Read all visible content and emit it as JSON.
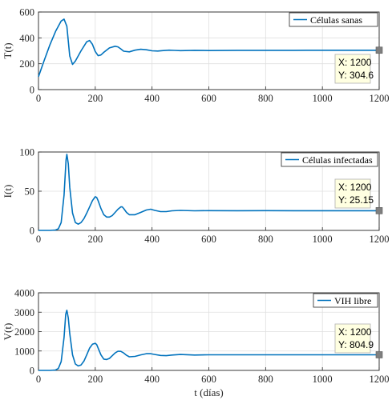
{
  "colors": {
    "line": "#0072BD",
    "grid": "#dfdfdf",
    "axis": "#262626",
    "tip_bg": "#ffffe1",
    "tip_border": "#b9b9b9",
    "marker": "#7f7f7f"
  },
  "chart_data": [
    {
      "type": "line",
      "ylabel": "T(t)",
      "xlabel": "",
      "xlim": [
        0,
        1200
      ],
      "ylim": [
        0,
        600
      ],
      "xticks": [
        "0",
        "200",
        "400",
        "600",
        "800",
        "1000",
        "1200"
      ],
      "yticks": [
        "0",
        "200",
        "400",
        "600"
      ],
      "grid": true,
      "legend": "top-right",
      "series": [
        {
          "name": "Células sanas",
          "x": [
            0,
            20,
            40,
            60,
            80,
            90,
            100,
            110,
            120,
            130,
            150,
            170,
            180,
            190,
            200,
            210,
            220,
            230,
            250,
            270,
            280,
            290,
            300,
            320,
            340,
            360,
            380,
            400,
            420,
            440,
            460,
            480,
            500,
            550,
            600,
            700,
            800,
            900,
            1000,
            1100,
            1200
          ],
          "y": [
            100,
            225,
            345,
            450,
            530,
            545,
            490,
            260,
            195,
            220,
            300,
            370,
            380,
            350,
            295,
            262,
            268,
            288,
            322,
            335,
            330,
            315,
            297,
            292,
            305,
            312,
            308,
            300,
            298,
            302,
            305,
            303,
            301,
            304,
            302,
            304,
            304,
            304,
            304.5,
            304.6,
            304.6
          ]
        }
      ],
      "datatip": {
        "x_label": "X: 1200",
        "y_label": "Y: 304.6"
      }
    },
    {
      "type": "line",
      "ylabel": "I(t)",
      "xlabel": "",
      "xlim": [
        0,
        1200
      ],
      "ylim": [
        0,
        100
      ],
      "xticks": [
        "0",
        "200",
        "400",
        "600",
        "800",
        "1000",
        "1200"
      ],
      "yticks": [
        "0",
        "50",
        "100"
      ],
      "grid": true,
      "legend": "top-right",
      "series": [
        {
          "name": "Células infectadas",
          "x": [
            0,
            40,
            60,
            70,
            80,
            90,
            97,
            100,
            105,
            110,
            120,
            130,
            140,
            150,
            160,
            170,
            180,
            190,
            200,
            205,
            210,
            220,
            230,
            240,
            250,
            260,
            270,
            280,
            290,
            295,
            300,
            310,
            320,
            340,
            360,
            380,
            395,
            410,
            430,
            450,
            470,
            500,
            550,
            600,
            700,
            800,
            900,
            1000,
            1100,
            1200
          ],
          "y": [
            0,
            0,
            0.5,
            2,
            10,
            45,
            90,
            97,
            85,
            55,
            22,
            10,
            8,
            10,
            15,
            22,
            30,
            38,
            43,
            42,
            38,
            28,
            20,
            17,
            17,
            19,
            23,
            27,
            30,
            30,
            28,
            23,
            20,
            20,
            23,
            26,
            27,
            25.5,
            24,
            24,
            25,
            25.5,
            25,
            25.2,
            25.1,
            25.2,
            25.15,
            25.15,
            25.15,
            25.15
          ]
        }
      ],
      "datatip": {
        "x_label": "X: 1200",
        "y_label": "Y: 25.15"
      }
    },
    {
      "type": "line",
      "ylabel": "V(t)",
      "xlabel": "t (días)",
      "xlim": [
        0,
        1200
      ],
      "ylim": [
        0,
        4000
      ],
      "xticks": [
        "0",
        "200",
        "400",
        "600",
        "800",
        "1000",
        "1200"
      ],
      "yticks": [
        "0",
        "1000",
        "2000",
        "3000",
        "4000"
      ],
      "grid": true,
      "legend": "top-right",
      "series": [
        {
          "name": "VIH libre",
          "x": [
            0,
            40,
            60,
            70,
            80,
            90,
            96,
            100,
            105,
            110,
            120,
            130,
            140,
            150,
            160,
            170,
            180,
            190,
            200,
            205,
            210,
            220,
            230,
            240,
            250,
            260,
            270,
            280,
            290,
            300,
            310,
            320,
            340,
            360,
            380,
            395,
            410,
            430,
            450,
            470,
            500,
            550,
            600,
            700,
            800,
            900,
            1000,
            1100,
            1200
          ],
          "y": [
            0,
            0,
            20,
            100,
            450,
            1700,
            2900,
            3100,
            2700,
            1900,
            800,
            330,
            230,
            280,
            480,
            800,
            1150,
            1350,
            1400,
            1330,
            1150,
            800,
            580,
            560,
            620,
            760,
            900,
            990,
            980,
            900,
            780,
            700,
            720,
            800,
            860,
            860,
            820,
            770,
            760,
            790,
            820,
            790,
            805,
            803,
            805,
            805,
            804.9,
            804.9,
            804.9
          ]
        }
      ],
      "datatip": {
        "x_label": "X: 1200",
        "y_label": "Y: 804.9"
      }
    }
  ]
}
